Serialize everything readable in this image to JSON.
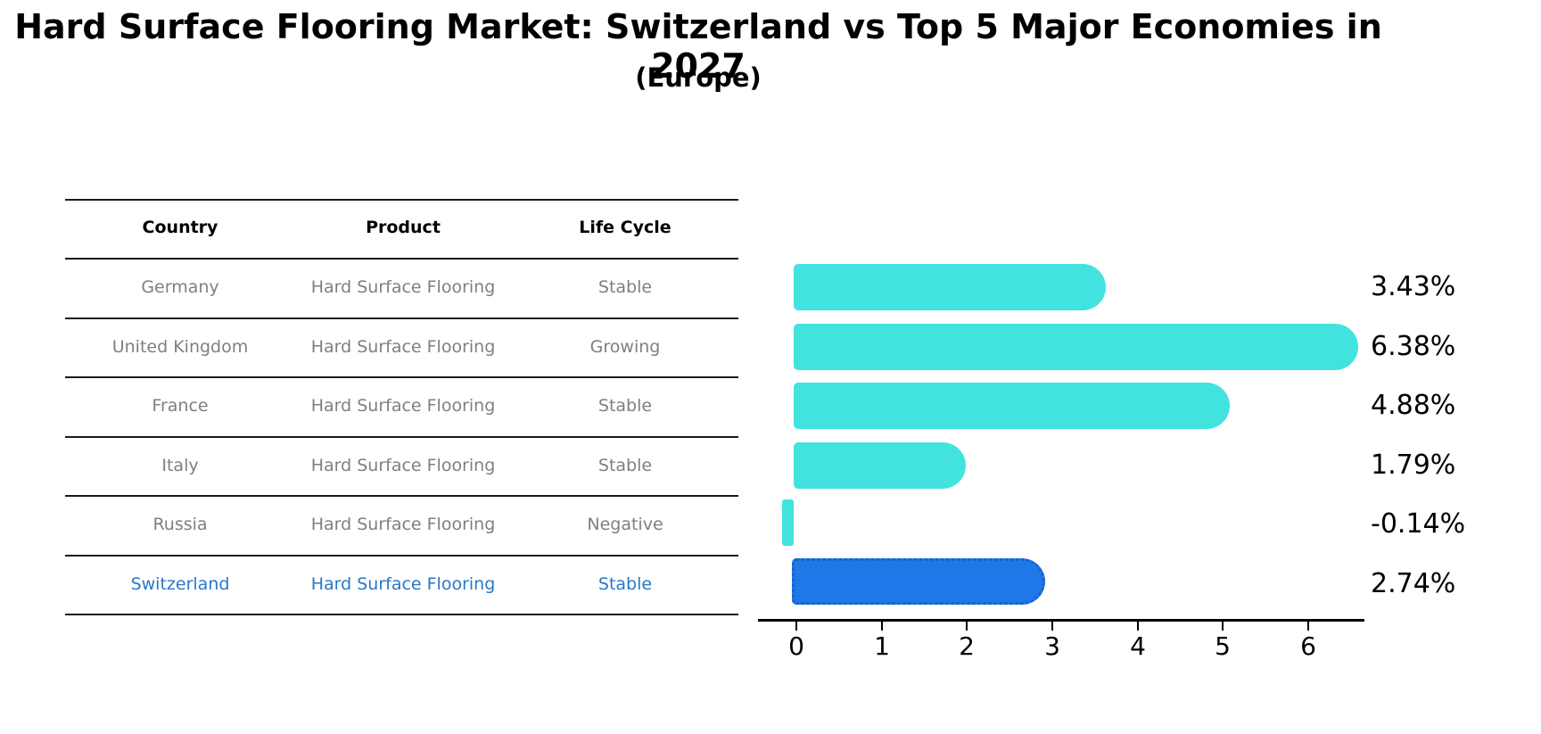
{
  "title": "Hard Surface Flooring Market: Switzerland vs Top 5 Major Economies in 2027",
  "subtitle": "(Europe)",
  "table": {
    "headers": [
      "Country",
      "Product",
      "Life Cycle"
    ],
    "rows": [
      {
        "country": "Germany",
        "product": "Hard Surface Flooring",
        "life_cycle": "Stable"
      },
      {
        "country": "United Kingdom",
        "product": "Hard Surface Flooring",
        "life_cycle": "Growing"
      },
      {
        "country": "France",
        "product": "Hard Surface Flooring",
        "life_cycle": "Stable"
      },
      {
        "country": "Italy",
        "product": "Hard Surface Flooring",
        "life_cycle": "Stable"
      },
      {
        "country": "Russia",
        "product": "Hard Surface Flooring",
        "life_cycle": "Negative"
      },
      {
        "country": "Switzerland",
        "product": "Hard Surface Flooring",
        "life_cycle": "Stable"
      }
    ],
    "highlighted_row": "Switzerland"
  },
  "chart_data": {
    "type": "bar",
    "orientation": "horizontal",
    "categories": [
      "Germany",
      "United Kingdom",
      "France",
      "Italy",
      "Russia",
      "Switzerland"
    ],
    "values": [
      3.43,
      6.38,
      4.88,
      1.79,
      -0.14,
      2.74
    ],
    "value_labels": [
      "3.43%",
      "6.38%",
      "4.88%",
      "1.79%",
      "-0.14%",
      "2.74%"
    ],
    "unit": "%",
    "x_ticks": [
      "0",
      "1",
      "2",
      "3",
      "4",
      "5",
      "6"
    ],
    "xlim": [
      -0.45,
      6.65
    ],
    "grid": false,
    "legend": false,
    "highlight_index": 5,
    "bar_color": "#42e3df",
    "highlight_bar_color": "#1e78e8",
    "highlight_border_color": "#1a5fc8",
    "highlight_text_color": "#2878c8",
    "table_text_color": "#7f7f7f",
    "axis_color": "#000000"
  }
}
